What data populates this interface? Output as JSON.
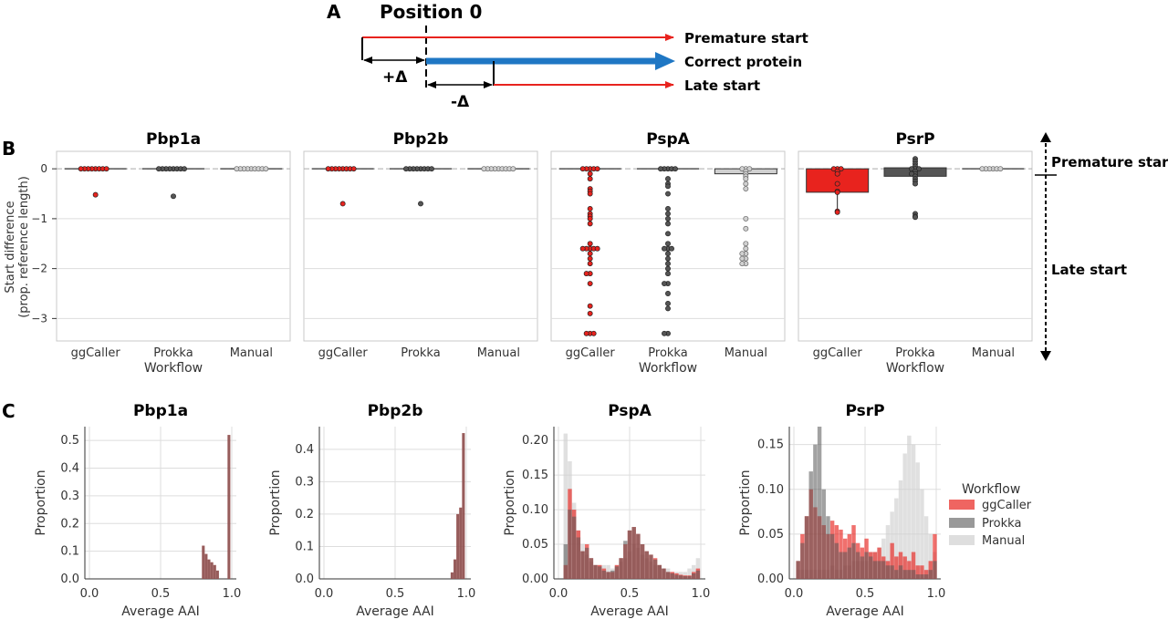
{
  "panel_a": {
    "letter": "A",
    "position_label": "Position 0",
    "premature_label": "Premature start",
    "correct_label": "Correct protein",
    "late_label": "Late start",
    "plus_delta": "+Δ",
    "minus_delta": "-Δ"
  },
  "panel_b": {
    "letter": "B",
    "ylabel_line1": "Start difference",
    "ylabel_line2": "(prop. reference length)",
    "xlabel": "Workflow",
    "categories": [
      "ggCaller",
      "Prokka",
      "Manual"
    ],
    "yticks": [
      "0",
      "−1",
      "−2",
      "−3"
    ],
    "arrow_top_label": "Premature start",
    "arrow_bottom_label": "Late start"
  },
  "panel_c": {
    "letter": "C",
    "ylabel": "Proportion",
    "xlabel": "Average AAI",
    "xticks": [
      "0.0",
      "0.5",
      "1.0"
    ],
    "legend_title": "Workflow",
    "legend_entries": [
      {
        "name": "ggCaller",
        "color": "#e8231e"
      },
      {
        "name": "Prokka",
        "color": "#555555"
      },
      {
        "name": "Manual",
        "color": "#d0d0d0"
      }
    ]
  },
  "colors": {
    "ggCaller": "#e8231e",
    "Prokka": "#555555",
    "Manual": "#d0d0d0",
    "blue_arrow": "#1f77c4",
    "red_arrow": "#e8231e"
  },
  "chart_data": [
    {
      "type": "scatter",
      "panel": "B",
      "title": "Pbp1a",
      "ylim": [
        -3.45,
        0.35
      ],
      "categories": [
        "ggCaller",
        "Prokka",
        "Manual"
      ],
      "series": [
        {
          "name": "ggCaller",
          "values": [
            0,
            0,
            0,
            0,
            0,
            0,
            0,
            0,
            -0.52
          ]
        },
        {
          "name": "Prokka",
          "values": [
            0,
            0,
            0,
            0,
            0,
            0,
            0,
            0,
            -0.55
          ]
        },
        {
          "name": "Manual",
          "values": [
            0,
            0,
            0,
            0,
            0,
            0,
            0,
            0,
            0
          ]
        }
      ]
    },
    {
      "type": "scatter",
      "panel": "B",
      "title": "Pbp2b",
      "ylim": [
        -3.45,
        0.35
      ],
      "categories": [
        "ggCaller",
        "Prokka",
        "Manual"
      ],
      "series": [
        {
          "name": "ggCaller",
          "values": [
            0,
            0,
            0,
            0,
            0,
            0,
            0,
            0,
            -0.7
          ]
        },
        {
          "name": "Prokka",
          "values": [
            0,
            0,
            0,
            0,
            0,
            0,
            0,
            0,
            -0.7
          ]
        },
        {
          "name": "Manual",
          "values": [
            0,
            0,
            0,
            0,
            0,
            0,
            0,
            0,
            0
          ]
        }
      ]
    },
    {
      "type": "scatter",
      "panel": "B",
      "title": "PspA",
      "ylim": [
        -3.45,
        0.35
      ],
      "categories": [
        "ggCaller",
        "Prokka",
        "Manual"
      ],
      "series": [
        {
          "name": "ggCaller",
          "values": [
            0,
            0,
            0,
            0,
            0,
            -0.1,
            -0.2,
            -0.4,
            -0.45,
            -0.5,
            -0.8,
            -0.9,
            -0.95,
            -1.0,
            -1.1,
            -1.5,
            -1.6,
            -1.6,
            -1.6,
            -1.6,
            -1.6,
            -1.7,
            -1.8,
            -1.9,
            -2.1,
            -2.1,
            -2.3,
            -2.75,
            -2.9,
            -3.3,
            -3.3,
            -3.3
          ]
        },
        {
          "name": "Prokka",
          "values": [
            0,
            0,
            0,
            0,
            0,
            -0.2,
            -0.3,
            -0.35,
            -0.5,
            -0.8,
            -0.9,
            -1.0,
            -1.1,
            -1.3,
            -1.5,
            -1.6,
            -1.6,
            -1.6,
            -1.7,
            -1.8,
            -1.9,
            -2.0,
            -2.1,
            -2.3,
            -2.3,
            -2.5,
            -2.7,
            -2.8,
            -3.3,
            -3.3
          ]
        },
        {
          "name": "Manual",
          "values": [
            0,
            0,
            0,
            -0.05,
            -0.1,
            -0.15,
            -0.2,
            -0.3,
            -0.4,
            -1.0,
            -1.2,
            -1.5,
            -1.6,
            -1.7,
            -1.7,
            -1.8,
            -1.8,
            -1.9,
            -1.9
          ]
        }
      ],
      "box": {
        "Manual": {
          "q1": -0.1,
          "q3": 0.0
        }
      }
    },
    {
      "type": "scatter",
      "panel": "B",
      "title": "PsrP",
      "ylim": [
        -3.45,
        0.35
      ],
      "categories": [
        "ggCaller",
        "Prokka",
        "Manual"
      ],
      "series": [
        {
          "name": "ggCaller",
          "values": [
            0,
            0,
            0,
            -0.05,
            -0.1,
            -0.3,
            -0.45,
            -0.47,
            -0.85,
            -0.87
          ]
        },
        {
          "name": "Prokka",
          "values": [
            0.2,
            0.15,
            0.1,
            0.05,
            0,
            0,
            0,
            -0.05,
            -0.1,
            -0.1,
            -0.15,
            -0.2,
            -0.25,
            -0.3,
            -0.9,
            -0.95,
            -0.97
          ]
        },
        {
          "name": "Manual",
          "values": [
            0,
            0,
            0,
            0,
            0,
            0
          ]
        }
      ],
      "box": {
        "ggCaller": {
          "q1": -0.47,
          "q3": 0.0,
          "lo": -0.87,
          "hi": 0.0
        },
        "Prokka": {
          "q1": -0.15,
          "q3": 0.02,
          "lo": -0.32,
          "hi": 0.2
        }
      }
    },
    {
      "type": "bar",
      "panel": "C",
      "title": "Pbp1a",
      "ylim": [
        0,
        0.55
      ],
      "yticks": [
        0.0,
        0.1,
        0.2,
        0.3,
        0.4,
        0.5
      ],
      "x": [
        0.8,
        0.82,
        0.84,
        0.86,
        0.88,
        0.9,
        0.98
      ],
      "series": [
        {
          "name": "ggCaller",
          "values": [
            0.12,
            0.09,
            0.07,
            0.06,
            0.05,
            0.03,
            0.52
          ]
        },
        {
          "name": "Prokka",
          "values": [
            0.12,
            0.09,
            0.07,
            0.06,
            0.05,
            0.03,
            0.52
          ]
        },
        {
          "name": "Manual",
          "values": [
            0.12,
            0.09,
            0.07,
            0.06,
            0.05,
            0.03,
            0.52
          ]
        }
      ]
    },
    {
      "type": "bar",
      "panel": "C",
      "title": "Pbp2b",
      "ylim": [
        0,
        0.47
      ],
      "yticks": [
        0.0,
        0.1,
        0.2,
        0.3,
        0.4
      ],
      "x": [
        0.9,
        0.92,
        0.94,
        0.96,
        0.98
      ],
      "series": [
        {
          "name": "ggCaller",
          "values": [
            0.02,
            0.06,
            0.2,
            0.22,
            0.45
          ]
        },
        {
          "name": "Prokka",
          "values": [
            0.02,
            0.06,
            0.2,
            0.22,
            0.45
          ]
        },
        {
          "name": "Manual",
          "values": [
            0.02,
            0.06,
            0.2,
            0.22,
            0.45
          ]
        }
      ]
    },
    {
      "type": "bar",
      "panel": "C",
      "title": "PspA",
      "ylim": [
        0,
        0.22
      ],
      "yticks": [
        0.0,
        0.05,
        0.1,
        0.15,
        0.2
      ],
      "x": [
        0.05,
        0.08,
        0.11,
        0.14,
        0.17,
        0.2,
        0.23,
        0.26,
        0.29,
        0.32,
        0.35,
        0.38,
        0.41,
        0.44,
        0.47,
        0.5,
        0.53,
        0.56,
        0.59,
        0.62,
        0.65,
        0.68,
        0.71,
        0.74,
        0.77,
        0.8,
        0.83,
        0.86,
        0.89,
        0.92,
        0.95,
        0.98
      ],
      "series": [
        {
          "name": "ggCaller",
          "values": [
            0.02,
            0.13,
            0.1,
            0.07,
            0.04,
            0.05,
            0.03,
            0.02,
            0.02,
            0.015,
            0.01,
            0.01,
            0.02,
            0.03,
            0.05,
            0.07,
            0.075,
            0.065,
            0.05,
            0.04,
            0.035,
            0.03,
            0.02,
            0.015,
            0.01,
            0.01,
            0.008,
            0.006,
            0.005,
            0.005,
            0.01,
            0.015
          ]
        },
        {
          "name": "Prokka",
          "values": [
            0.05,
            0.1,
            0.09,
            0.06,
            0.04,
            0.045,
            0.03,
            0.02,
            0.018,
            0.012,
            0.01,
            0.012,
            0.018,
            0.03,
            0.055,
            0.07,
            0.075,
            0.065,
            0.05,
            0.04,
            0.035,
            0.028,
            0.02,
            0.015,
            0.01,
            0.008,
            0.006,
            0.005,
            0.004,
            0.004,
            0.008,
            0.012
          ]
        },
        {
          "name": "Manual",
          "values": [
            0.21,
            0.17,
            0.11,
            0.07,
            0.05,
            0.035,
            0.025,
            0.02,
            0.02,
            0.02,
            0.02,
            0.015,
            0.02,
            0.025,
            0.03,
            0.04,
            0.05,
            0.045,
            0.035,
            0.03,
            0.025,
            0.02,
            0.02,
            0.015,
            0.015,
            0.01,
            0.01,
            0.01,
            0.01,
            0.015,
            0.02,
            0.03
          ]
        }
      ]
    },
    {
      "type": "bar",
      "panel": "C",
      "title": "PsrP",
      "ylim": [
        0,
        0.17
      ],
      "yticks": [
        0.0,
        0.05,
        0.1,
        0.15
      ],
      "x": [
        0.03,
        0.06,
        0.09,
        0.12,
        0.15,
        0.18,
        0.21,
        0.24,
        0.27,
        0.3,
        0.33,
        0.36,
        0.39,
        0.42,
        0.45,
        0.48,
        0.51,
        0.54,
        0.57,
        0.6,
        0.63,
        0.66,
        0.69,
        0.72,
        0.75,
        0.78,
        0.81,
        0.84,
        0.87,
        0.9,
        0.93,
        0.96,
        0.99
      ],
      "series": [
        {
          "name": "ggCaller",
          "values": [
            0.02,
            0.05,
            0.07,
            0.1,
            0.08,
            0.07,
            0.06,
            0.05,
            0.065,
            0.06,
            0.055,
            0.045,
            0.05,
            0.06,
            0.04,
            0.035,
            0.045,
            0.03,
            0.03,
            0.035,
            0.025,
            0.02,
            0.04,
            0.025,
            0.03,
            0.025,
            0.02,
            0.03,
            0.015,
            0.015,
            0.01,
            0.02,
            0.05
          ]
        },
        {
          "name": "Prokka",
          "values": [
            0.02,
            0.04,
            0.07,
            0.12,
            0.15,
            0.17,
            0.1,
            0.07,
            0.05,
            0.04,
            0.03,
            0.03,
            0.035,
            0.04,
            0.03,
            0.025,
            0.03,
            0.025,
            0.02,
            0.02,
            0.02,
            0.015,
            0.015,
            0.01,
            0.015,
            0.01,
            0.01,
            0.01,
            0.005,
            0.005,
            0.005,
            0.01,
            0.02
          ]
        },
        {
          "name": "Manual",
          "values": [
            0.01,
            0.01,
            0.01,
            0.01,
            0.01,
            0.01,
            0.01,
            0.01,
            0.015,
            0.01,
            0.01,
            0.015,
            0.015,
            0.02,
            0.02,
            0.02,
            0.02,
            0.03,
            0.03,
            0.035,
            0.045,
            0.06,
            0.075,
            0.09,
            0.11,
            0.14,
            0.16,
            0.15,
            0.13,
            0.1,
            0.07,
            0.05,
            0.03
          ]
        }
      ]
    }
  ]
}
